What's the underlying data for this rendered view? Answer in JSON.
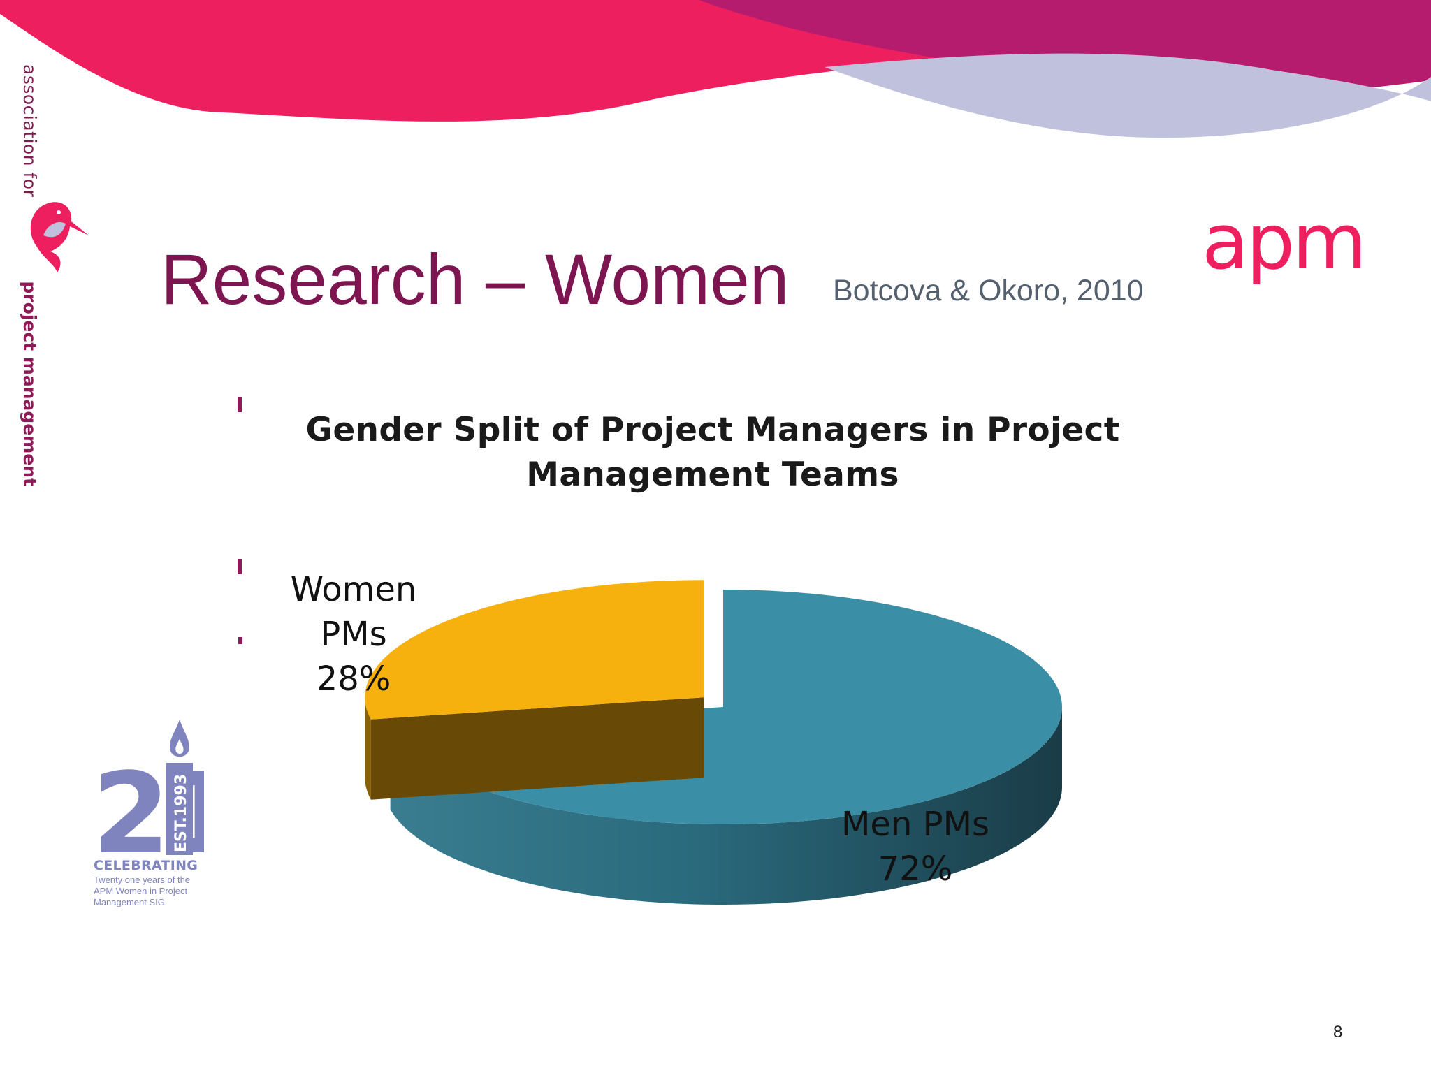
{
  "branding": {
    "org_prefix": "association for",
    "org_name": "project management",
    "logo_text": "apm",
    "colors": {
      "magenta": "#ee1f5f",
      "plum": "#b61c6e",
      "lavender": "#c0c1dc",
      "title": "#7d1550"
    }
  },
  "slide": {
    "title": "Research – Women",
    "citation": "Botcova & Okoro, 2010",
    "page_number": "8"
  },
  "anniversary": {
    "number": "21",
    "established": "EST.1993",
    "celebrating": "CELEBRATING",
    "caption_lines": [
      "Twenty one years of the",
      "APM Women in Project",
      "Management SIG"
    ]
  },
  "chart_data": {
    "type": "pie",
    "title_lines": [
      "Gender Split of Project Managers in Project",
      "Management Teams"
    ],
    "style": "3d-exploded",
    "slices": [
      {
        "label_lines": [
          "Women",
          "PMs"
        ],
        "value": 28,
        "value_label": "28%",
        "color": "#f7b10f",
        "exploded": true
      },
      {
        "label_lines": [
          "Men PMs"
        ],
        "value": 72,
        "value_label": "72%",
        "color": "#3a8fa6",
        "exploded": false
      }
    ]
  }
}
